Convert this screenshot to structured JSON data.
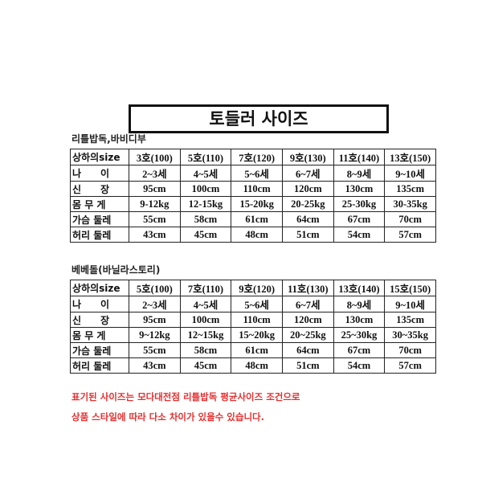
{
  "title": "토들러 사이즈",
  "tables": [
    {
      "label": "리틀밥독,바비디부",
      "header": {
        "first": "상하의size",
        "cols": [
          "3호(100)",
          "5호(110)",
          "7호(120)",
          "9호(130)",
          "11호(140)",
          "13호(150)"
        ]
      },
      "rows": [
        {
          "label": "나　　이",
          "cells": [
            "2~3세",
            "4~5세",
            "5~6세",
            "6~7세",
            "8~9세",
            "9~10세"
          ]
        },
        {
          "label": "신　　장",
          "cells": [
            "95cm",
            "100cm",
            "110cm",
            "120cm",
            "130cm",
            "135cm"
          ]
        },
        {
          "label": "몸 무 게",
          "cells": [
            "9-12kg",
            "12-15kg",
            "15-20kg",
            "20-25kg",
            "25-30kg",
            "30-35kg"
          ]
        },
        {
          "label": "가슴 둘레",
          "cells": [
            "55cm",
            "58cm",
            "61cm",
            "64cm",
            "67cm",
            "70cm"
          ]
        },
        {
          "label": "허리 둘레",
          "cells": [
            "43cm",
            "45cm",
            "48cm",
            "51cm",
            "54cm",
            "57cm"
          ]
        }
      ]
    },
    {
      "label": "베베돌(바닐라스토리)",
      "header": {
        "first": "상하의size",
        "cols": [
          "5호(100)",
          "7호(110)",
          "9호(120)",
          "11호(130)",
          "13호(140)",
          "15호(150)"
        ]
      },
      "rows": [
        {
          "label": "나　　이",
          "cells": [
            "2~3세",
            "4~5세",
            "5~6세",
            "6~7세",
            "8~9세",
            "9~10세"
          ]
        },
        {
          "label": "신　　장",
          "cells": [
            "95cm",
            "100cm",
            "110cm",
            "120cm",
            "130cm",
            "135cm"
          ]
        },
        {
          "label": "몸 무 게",
          "cells": [
            "9~12kg",
            "12~15kg",
            "15~20kg",
            "20~25kg",
            "25~30kg",
            "30~35kg"
          ]
        },
        {
          "label": "가슴 둘레",
          "cells": [
            "55cm",
            "58cm",
            "61cm",
            "64cm",
            "67cm",
            "70cm"
          ]
        },
        {
          "label": "허리 둘레",
          "cells": [
            "43cm",
            "45cm",
            "48cm",
            "51cm",
            "54cm",
            "57cm"
          ]
        }
      ]
    }
  ],
  "notes": [
    "표기된 사이즈는 모다대전점 리틀밥독 평균사이즈 조건으로",
    "상품 스타일에 따라 다소 차이가 있을수 있습니다."
  ],
  "colors": {
    "note": "#e53030",
    "border": "#222222"
  }
}
